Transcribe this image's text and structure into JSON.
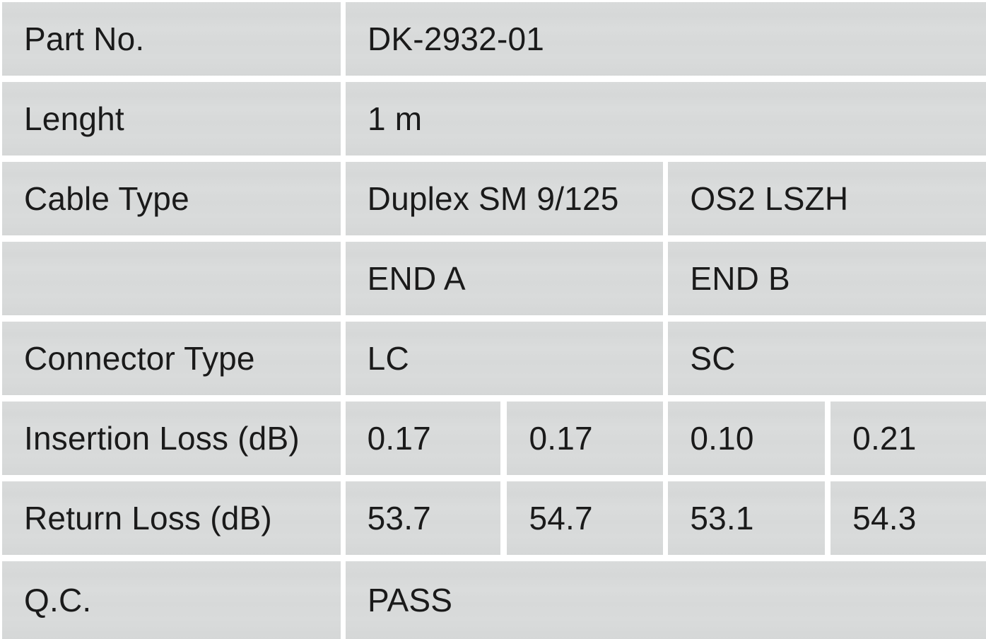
{
  "document": {
    "type": "cable-spec-qc-table",
    "colors": {
      "cell_bg": "#d8dada",
      "gutter": "#ffffff",
      "text": "#1a1a1a"
    },
    "rows": {
      "part_no": {
        "label": "Part No.",
        "value": "DK-2932-01"
      },
      "length": {
        "label": "Lenght",
        "value": "1 m"
      },
      "cable_type": {
        "label": "Cable Type",
        "end_a": "Duplex SM 9/125",
        "end_b": "OS2 LSZH"
      },
      "end_headers": {
        "label": "",
        "end_a": "END A",
        "end_b": "END B"
      },
      "connector_type": {
        "label": "Connector Type",
        "end_a": "LC",
        "end_b": "SC"
      },
      "insertion_loss": {
        "label": "Insertion Loss (dB)",
        "values": [
          "0.17",
          "0.17",
          "0.10",
          "0.21"
        ]
      },
      "return_loss": {
        "label": "Return Loss (dB)",
        "values": [
          "53.7",
          "54.7",
          "53.1",
          "54.3"
        ]
      },
      "qc": {
        "label": "Q.C.",
        "value": "PASS"
      }
    }
  }
}
